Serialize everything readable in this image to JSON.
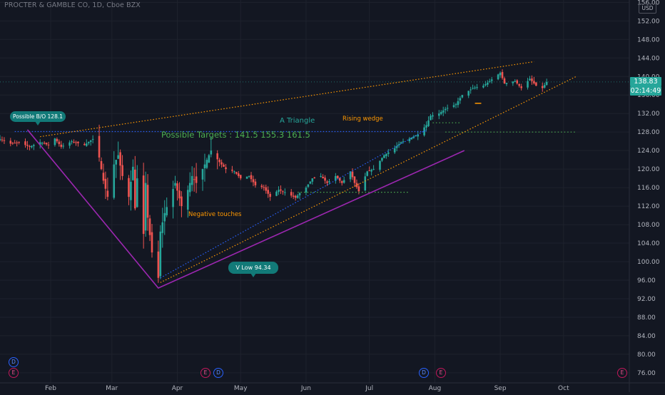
{
  "header": {
    "title": "PROCTER & GAMBLE CO, 1D, Cboe BZX",
    "currency": "USD"
  },
  "price_axis": {
    "ticks": [
      "156.00",
      "152.00",
      "148.00",
      "144.00",
      "140.00",
      "136.00",
      "132.00",
      "128.00",
      "124.00",
      "120.00",
      "116.00",
      "112.00",
      "108.00",
      "104.00",
      "100.00",
      "96.00",
      "92.00",
      "88.00",
      "84.00",
      "80.00",
      "76.00"
    ],
    "last_price": "138.83",
    "countdown": "02:14:49"
  },
  "time_axis": {
    "labels": [
      "Feb",
      "Mar",
      "Apr",
      "May",
      "Jun",
      "Jul",
      "Aug",
      "Sep",
      "Oct"
    ]
  },
  "annotations": {
    "bo_label": "Possible B/O 128.1",
    "triangle_label": "A Triangle",
    "wedge_label": "Rising wedge",
    "targets_label": "Possible Targets :  141.5  155.3  161.5",
    "neg_touch_label": "Negative touches",
    "vlow_label": "V Low  94.34"
  },
  "events": [
    {
      "kind": "D",
      "date": "2020-01-22"
    },
    {
      "kind": "E",
      "date": "2020-01-22"
    },
    {
      "kind": "E",
      "date": "2020-04-17"
    },
    {
      "kind": "D",
      "date": "2020-04-22"
    },
    {
      "kind": "D",
      "date": "2020-07-21"
    },
    {
      "kind": "E",
      "date": "2020-07-30"
    },
    {
      "kind": "E",
      "date": "2020-10-20"
    }
  ],
  "colors": {
    "up": "#26a69a",
    "down": "#ef5350",
    "support": "#9c27b0",
    "targets": "#4caf50",
    "wedge": "#ff9800",
    "bo_line": "#2962ff",
    "bubble": "#127a78"
  },
  "chart_data": {
    "type": "candlestick",
    "title": "PROCTER & GAMBLE CO, 1D, Cboe BZX",
    "ylim": [
      74,
      158
    ],
    "x_range": [
      "2020-01-08",
      "2020-10-21"
    ],
    "last_price": 138.83,
    "series": [
      {
        "name": "PG daily",
        "candles": []
      }
    ],
    "price_path": [
      [
        "2020-01-08",
        126.5
      ],
      [
        "2020-01-13",
        125.5
      ],
      [
        "2020-01-17",
        125.8
      ],
      [
        "2020-01-22",
        124.8
      ],
      [
        "2020-01-27",
        125.8
      ],
      [
        "2020-01-31",
        125.2
      ],
      [
        "2020-02-03",
        126.6
      ],
      [
        "2020-02-06",
        124.8
      ],
      [
        "2020-02-11",
        126.0
      ],
      [
        "2020-02-17",
        125.2
      ],
      [
        "2020-02-21",
        126.5
      ],
      [
        "2020-02-24",
        122.5
      ],
      [
        "2020-02-26",
        117.5
      ],
      [
        "2020-02-28",
        114.0
      ],
      [
        "2020-03-02",
        121.0
      ],
      [
        "2020-03-04",
        123.0
      ],
      [
        "2020-03-06",
        118.5
      ],
      [
        "2020-03-09",
        114.0
      ],
      [
        "2020-03-11",
        120.5
      ],
      [
        "2020-03-12",
        111.5
      ],
      [
        "2020-03-13",
        118.0
      ],
      [
        "2020-03-16",
        106.0
      ],
      [
        "2020-03-17",
        117.0
      ],
      [
        "2020-03-18",
        109.5
      ],
      [
        "2020-03-20",
        102.0
      ],
      [
        "2020-03-23",
        96.5
      ],
      [
        "2020-03-24",
        106.5
      ],
      [
        "2020-03-26",
        110.5
      ],
      [
        "2020-03-31",
        117.0
      ],
      [
        "2020-04-03",
        112.0
      ],
      [
        "2020-04-06",
        115.5
      ],
      [
        "2020-04-08",
        118.5
      ],
      [
        "2020-04-10",
        117.0
      ],
      [
        "2020-04-14",
        121.0
      ],
      [
        "2020-04-17",
        124.0
      ],
      [
        "2020-04-21",
        121.5
      ],
      [
        "2020-04-24",
        120.0
      ],
      [
        "2020-04-28",
        119.5
      ],
      [
        "2020-05-01",
        118.0
      ],
      [
        "2020-05-05",
        118.5
      ],
      [
        "2020-05-08",
        116.5
      ],
      [
        "2020-05-12",
        116.0
      ],
      [
        "2020-05-15",
        114.0
      ],
      [
        "2020-05-19",
        115.5
      ],
      [
        "2020-05-22",
        115.0
      ],
      [
        "2020-05-27",
        113.8
      ],
      [
        "2020-05-29",
        114.8
      ],
      [
        "2020-06-01",
        116.0
      ],
      [
        "2020-06-04",
        118.0
      ],
      [
        "2020-06-08",
        118.5
      ],
      [
        "2020-06-11",
        117.0
      ],
      [
        "2020-06-15",
        118.5
      ],
      [
        "2020-06-18",
        117.0
      ],
      [
        "2020-06-22",
        119.5
      ],
      [
        "2020-06-24",
        117.0
      ],
      [
        "2020-06-26",
        115.2
      ],
      [
        "2020-06-30",
        119.5
      ],
      [
        "2020-07-03",
        120.0
      ],
      [
        "2020-07-08",
        123.0
      ],
      [
        "2020-07-13",
        124.5
      ],
      [
        "2020-07-16",
        125.8
      ],
      [
        "2020-07-21",
        126.8
      ],
      [
        "2020-07-24",
        127.5
      ],
      [
        "2020-07-28",
        129.5
      ],
      [
        "2020-07-30",
        131.5
      ],
      [
        "2020-08-03",
        132.0
      ],
      [
        "2020-08-06",
        133.0
      ],
      [
        "2020-08-11",
        134.0
      ],
      [
        "2020-08-14",
        136.0
      ],
      [
        "2020-08-19",
        137.5
      ],
      [
        "2020-08-24",
        138.0
      ],
      [
        "2020-08-27",
        139.0
      ],
      [
        "2020-09-01",
        140.8
      ],
      [
        "2020-09-03",
        138.5
      ],
      [
        "2020-09-08",
        139.0
      ],
      [
        "2020-09-11",
        137.5
      ],
      [
        "2020-09-15",
        139.5
      ],
      [
        "2020-09-18",
        138.0
      ],
      [
        "2020-09-21",
        137.5
      ],
      [
        "2020-09-23",
        138.83
      ]
    ],
    "drawings": {
      "breakout_level": 128.1,
      "v_low": 94.34,
      "targets": [
        141.5,
        155.3,
        161.5
      ],
      "support_line": [
        [
          "2020-01-21",
          128.5
        ],
        [
          "2020-03-23",
          94.3
        ],
        [
          "2020-08-15",
          124.0
        ]
      ],
      "upper_trend": [
        [
          "2020-01-27",
          127.0
        ],
        [
          "2020-09-17",
          143.2
        ]
      ],
      "wedge_lower": [
        [
          "2020-03-24",
          95.5
        ],
        [
          "2020-10-07",
          140.0
        ]
      ],
      "triangle_lower": [
        [
          "2020-03-24",
          96.5
        ],
        [
          "2020-07-28",
          128.5
        ]
      ],
      "green_dotted_levels": [
        {
          "from": "2020-05-28",
          "to": "2020-07-20",
          "price": 115.0
        },
        {
          "from": "2020-08-06",
          "to": "2020-10-07",
          "price": 128.0
        },
        {
          "from": "2020-07-31",
          "to": "2020-08-13",
          "price": 130.0
        }
      ]
    }
  }
}
